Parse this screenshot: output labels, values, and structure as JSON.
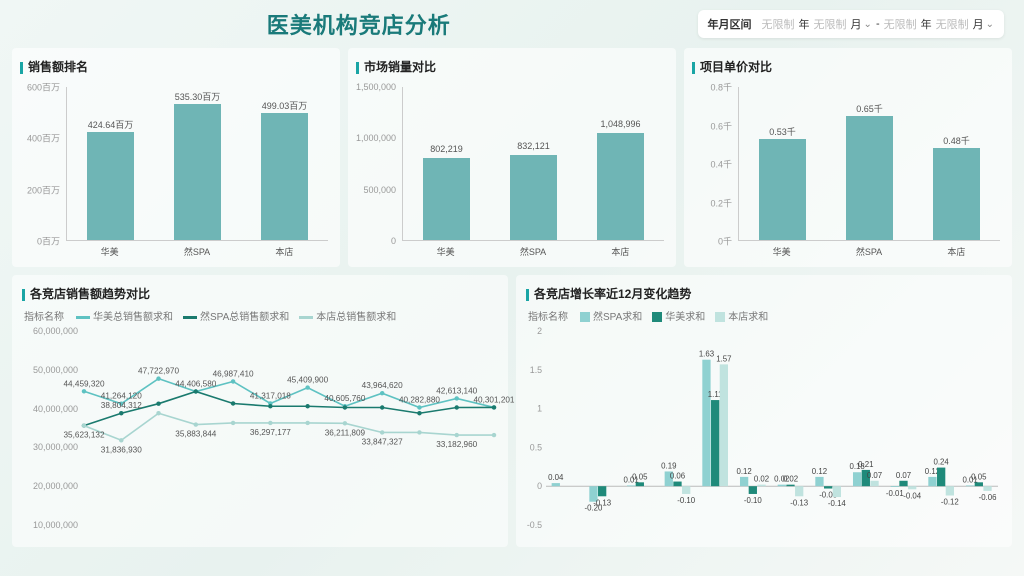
{
  "header": {
    "title": "医美机构竞店分析",
    "date_label": "年月区间",
    "plc_year": "无限制",
    "yr": "年",
    "mo_sel": "月",
    "dash": "-"
  },
  "colors": {
    "bar": "#6fb5b5",
    "axis": "#cccccc",
    "text_muted": "#999999",
    "series": [
      "#5ec2c2",
      "#1a7a6e",
      "#a8d5d0"
    ],
    "group_series": [
      "#8fd1d1",
      "#1f8a7a",
      "#c0e3df"
    ]
  },
  "top_charts": [
    {
      "title": "销售额排名",
      "type": "bar",
      "categories": [
        "华美",
        "然SPA",
        "本店"
      ],
      "values": [
        424.64,
        535.3,
        499.03
      ],
      "unit_suffix": "百万",
      "ymax": 600,
      "ystep": 200,
      "ytick_suffix": "百万"
    },
    {
      "title": "市场销量对比",
      "type": "bar",
      "categories": [
        "华美",
        "然SPA",
        "本店"
      ],
      "values": [
        802219,
        832121,
        1048996
      ],
      "unit_suffix": "",
      "ymax": 1500000,
      "ystep": 500000,
      "ytick_suffix": "",
      "value_fmt": "comma"
    },
    {
      "title": "项目单价对比",
      "type": "bar",
      "categories": [
        "华美",
        "然SPA",
        "本店"
      ],
      "values": [
        0.53,
        0.65,
        0.48
      ],
      "unit_suffix": "千",
      "ymax": 0.8,
      "ystep": 0.2,
      "ytick_suffix": "千"
    }
  ],
  "trend_chart": {
    "title": "各竞店销售额趋势对比",
    "legend_label": "指标名称",
    "series_names": [
      "华美总销售额求和",
      "然SPA总销售额求和",
      "本店总销售额求和"
    ],
    "ymin": 10000000,
    "ymax": 60000000,
    "ystep": 10000000,
    "n_points": 12,
    "series": [
      [
        44459320,
        41264120,
        47722970,
        44406580,
        46987410,
        41317018,
        45409900,
        40605760,
        43964620,
        40282880,
        42613140,
        40301201
      ],
      [
        35623132,
        38804312,
        41264120,
        44406580,
        41317018,
        40605760,
        40605760,
        40282880,
        40282880,
        38804312,
        40282880,
        40301201
      ],
      [
        35623132,
        31836930,
        38804312,
        35883844,
        36297177,
        36297177,
        36297177,
        36211809,
        33847327,
        33847327,
        33182960,
        33182960
      ]
    ],
    "show_labels": [
      [
        44459320,
        41264120,
        47722970,
        44406580,
        46987410,
        41317018,
        45409900,
        40605760,
        43964620,
        40282880,
        42613140,
        40301201
      ],
      [
        null,
        38804312,
        null,
        null,
        null,
        null,
        null,
        null,
        null,
        null,
        null,
        null
      ],
      [
        35623132,
        31836930,
        null,
        35883844,
        null,
        36297177,
        null,
        36211809,
        33847327,
        null,
        33182960,
        null
      ]
    ]
  },
  "growth_chart": {
    "title": "各竞店增长率近12月变化趋势",
    "legend_label": "指标名称",
    "series_names": [
      "然SPA求和",
      "华美求和",
      "本店求和"
    ],
    "ymin": -0.5,
    "ymax": 2,
    "ystep": 0.5,
    "n_groups": 12,
    "series": [
      [
        0.04,
        -0.2,
        0.01,
        0.19,
        1.63,
        0.12,
        0.02,
        0.12,
        0.18,
        -0.01,
        0.12,
        0.01
      ],
      [
        null,
        -0.13,
        0.05,
        0.06,
        1.11,
        -0.1,
        0.02,
        -0.03,
        0.21,
        0.07,
        0.24,
        0.05
      ],
      [
        null,
        null,
        null,
        -0.1,
        1.57,
        0.02,
        -0.13,
        -0.14,
        0.07,
        -0.04,
        -0.12,
        -0.06
      ]
    ]
  }
}
